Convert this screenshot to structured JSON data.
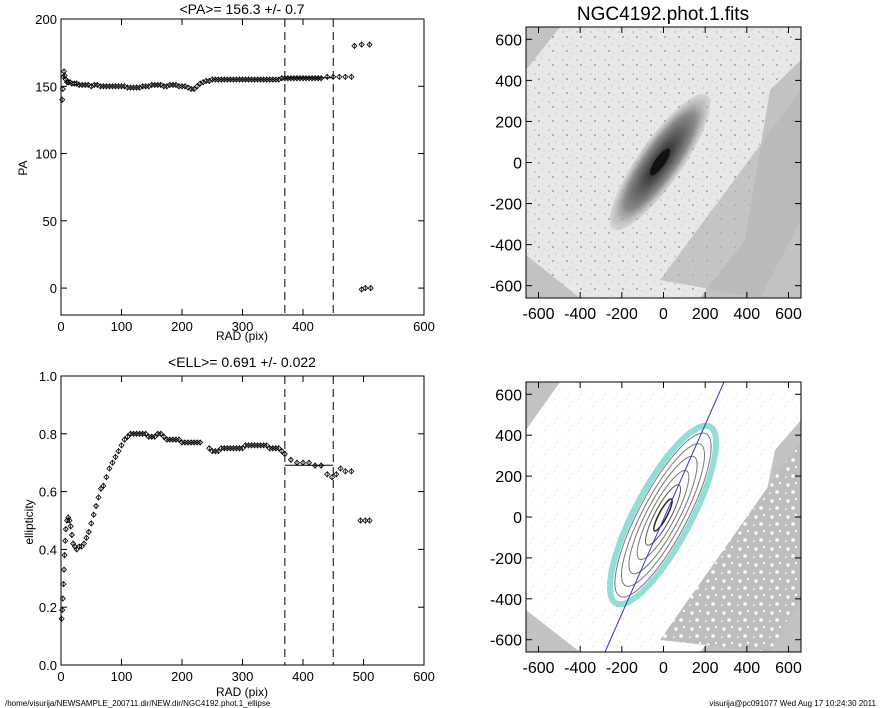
{
  "chart_data": [
    {
      "type": "scatter",
      "title": "<PA>= 156.3 +/-   0.7",
      "xlabel": "RAD (pix)",
      "ylabel": "PA",
      "xlim": [
        0,
        600
      ],
      "ylim": [
        -20,
        200
      ],
      "xticks": [
        "0",
        "100",
        "200",
        "300",
        "400",
        "600"
      ],
      "yticks": [
        "0",
        "50",
        "100",
        "150",
        "200"
      ],
      "vlines_x": [
        370,
        450
      ],
      "mean_line": {
        "x_range": [
          370,
          450
        ],
        "y": 156.3
      },
      "points": [
        [
          2,
          140
        ],
        [
          3,
          148
        ],
        [
          4,
          157
        ],
        [
          5,
          161
        ],
        [
          6,
          158
        ],
        [
          8,
          155
        ],
        [
          10,
          153
        ],
        [
          12,
          153
        ],
        [
          15,
          153
        ],
        [
          18,
          152
        ],
        [
          22,
          152
        ],
        [
          26,
          152
        ],
        [
          30,
          151
        ],
        [
          35,
          151
        ],
        [
          40,
          151
        ],
        [
          45,
          151
        ],
        [
          50,
          150
        ],
        [
          55,
          151
        ],
        [
          60,
          151
        ],
        [
          65,
          150
        ],
        [
          70,
          150
        ],
        [
          75,
          150
        ],
        [
          80,
          150
        ],
        [
          85,
          150
        ],
        [
          90,
          150
        ],
        [
          95,
          150
        ],
        [
          100,
          150
        ],
        [
          105,
          150
        ],
        [
          110,
          149
        ],
        [
          115,
          149
        ],
        [
          120,
          149
        ],
        [
          125,
          149
        ],
        [
          130,
          149
        ],
        [
          135,
          150
        ],
        [
          140,
          150
        ],
        [
          145,
          150
        ],
        [
          150,
          151
        ],
        [
          155,
          151
        ],
        [
          160,
          151
        ],
        [
          165,
          151
        ],
        [
          170,
          150
        ],
        [
          175,
          150
        ],
        [
          180,
          151
        ],
        [
          185,
          151
        ],
        [
          190,
          151
        ],
        [
          195,
          150
        ],
        [
          200,
          150
        ],
        [
          205,
          150
        ],
        [
          210,
          149
        ],
        [
          215,
          148
        ],
        [
          220,
          148
        ],
        [
          225,
          150
        ],
        [
          230,
          152
        ],
        [
          235,
          153
        ],
        [
          240,
          154
        ],
        [
          245,
          154
        ],
        [
          250,
          155
        ],
        [
          255,
          155
        ],
        [
          260,
          155
        ],
        [
          265,
          155
        ],
        [
          270,
          155
        ],
        [
          275,
          155
        ],
        [
          280,
          155
        ],
        [
          285,
          155
        ],
        [
          290,
          155
        ],
        [
          295,
          155
        ],
        [
          300,
          155
        ],
        [
          305,
          155
        ],
        [
          310,
          155
        ],
        [
          315,
          155
        ],
        [
          320,
          155
        ],
        [
          325,
          155
        ],
        [
          330,
          155
        ],
        [
          335,
          155
        ],
        [
          340,
          155
        ],
        [
          345,
          155
        ],
        [
          350,
          155
        ],
        [
          355,
          155
        ],
        [
          360,
          155
        ],
        [
          365,
          156
        ],
        [
          370,
          156
        ],
        [
          375,
          156
        ],
        [
          380,
          156
        ],
        [
          385,
          156
        ],
        [
          390,
          156
        ],
        [
          395,
          156
        ],
        [
          400,
          156
        ],
        [
          405,
          156
        ],
        [
          410,
          156
        ],
        [
          415,
          156
        ],
        [
          420,
          156
        ],
        [
          425,
          156
        ],
        [
          430,
          156
        ],
        [
          440,
          157
        ],
        [
          450,
          157
        ],
        [
          460,
          157
        ],
        [
          470,
          157
        ],
        [
          480,
          157
        ],
        [
          485,
          180
        ],
        [
          497,
          181
        ],
        [
          510,
          181
        ],
        [
          497,
          -1
        ],
        [
          503,
          0
        ],
        [
          512,
          0
        ]
      ]
    },
    {
      "type": "scatter",
      "title": "<ELL>= 0.691 +/-  0.022",
      "xlabel": "RAD (pix)",
      "ylabel": "ellipticity",
      "xlim": [
        0,
        600
      ],
      "ylim": [
        0.0,
        1.0
      ],
      "xticks": [
        "0",
        "100",
        "200",
        "300",
        "400",
        "500",
        "600"
      ],
      "yticks": [
        "0.0",
        "0.2",
        "0.4",
        "0.6",
        "0.8",
        "1.0"
      ],
      "vlines_x": [
        370,
        450
      ],
      "mean_line": {
        "x_range": [
          370,
          450
        ],
        "y": 0.691
      },
      "points": [
        [
          1,
          0.16
        ],
        [
          2,
          0.19
        ],
        [
          3,
          0.23
        ],
        [
          4,
          0.28
        ],
        [
          5,
          0.33
        ],
        [
          6,
          0.38
        ],
        [
          7,
          0.43
        ],
        [
          8,
          0.47
        ],
        [
          10,
          0.5
        ],
        [
          12,
          0.51
        ],
        [
          14,
          0.5
        ],
        [
          16,
          0.48
        ],
        [
          18,
          0.45
        ],
        [
          20,
          0.42
        ],
        [
          23,
          0.41
        ],
        [
          26,
          0.4
        ],
        [
          30,
          0.41
        ],
        [
          34,
          0.41
        ],
        [
          38,
          0.42
        ],
        [
          42,
          0.44
        ],
        [
          46,
          0.46
        ],
        [
          50,
          0.49
        ],
        [
          54,
          0.52
        ],
        [
          58,
          0.55
        ],
        [
          62,
          0.58
        ],
        [
          66,
          0.61
        ],
        [
          70,
          0.62
        ],
        [
          75,
          0.65
        ],
        [
          80,
          0.68
        ],
        [
          85,
          0.7
        ],
        [
          90,
          0.72
        ],
        [
          95,
          0.74
        ],
        [
          100,
          0.76
        ],
        [
          105,
          0.78
        ],
        [
          110,
          0.79
        ],
        [
          115,
          0.8
        ],
        [
          120,
          0.8
        ],
        [
          125,
          0.8
        ],
        [
          130,
          0.8
        ],
        [
          135,
          0.8
        ],
        [
          140,
          0.8
        ],
        [
          145,
          0.79
        ],
        [
          150,
          0.79
        ],
        [
          155,
          0.79
        ],
        [
          160,
          0.8
        ],
        [
          165,
          0.8
        ],
        [
          170,
          0.79
        ],
        [
          175,
          0.78
        ],
        [
          180,
          0.78
        ],
        [
          185,
          0.78
        ],
        [
          190,
          0.78
        ],
        [
          195,
          0.78
        ],
        [
          200,
          0.77
        ],
        [
          205,
          0.77
        ],
        [
          210,
          0.77
        ],
        [
          215,
          0.77
        ],
        [
          220,
          0.77
        ],
        [
          225,
          0.77
        ],
        [
          230,
          0.77
        ],
        [
          245,
          0.75
        ],
        [
          250,
          0.74
        ],
        [
          255,
          0.74
        ],
        [
          260,
          0.74
        ],
        [
          265,
          0.75
        ],
        [
          270,
          0.75
        ],
        [
          275,
          0.75
        ],
        [
          280,
          0.75
        ],
        [
          285,
          0.75
        ],
        [
          290,
          0.75
        ],
        [
          295,
          0.75
        ],
        [
          300,
          0.75
        ],
        [
          305,
          0.76
        ],
        [
          310,
          0.76
        ],
        [
          315,
          0.76
        ],
        [
          320,
          0.76
        ],
        [
          325,
          0.76
        ],
        [
          330,
          0.76
        ],
        [
          335,
          0.76
        ],
        [
          340,
          0.76
        ],
        [
          345,
          0.75
        ],
        [
          350,
          0.75
        ],
        [
          355,
          0.75
        ],
        [
          360,
          0.75
        ],
        [
          365,
          0.74
        ],
        [
          370,
          0.73
        ],
        [
          380,
          0.71
        ],
        [
          390,
          0.7
        ],
        [
          400,
          0.7
        ],
        [
          410,
          0.7
        ],
        [
          420,
          0.69
        ],
        [
          430,
          0.69
        ],
        [
          440,
          0.66
        ],
        [
          448,
          0.65
        ],
        [
          455,
          0.66
        ],
        [
          462,
          0.68
        ],
        [
          470,
          0.67
        ],
        [
          480,
          0.67
        ],
        [
          495,
          0.5
        ],
        [
          503,
          0.5
        ],
        [
          510,
          0.5
        ]
      ]
    }
  ],
  "images": [
    {
      "title": "NGC4192.phot.1.fits",
      "xticks": [
        "-600",
        "-400",
        "-200",
        "0",
        "200",
        "400",
        "600"
      ],
      "yticks": [
        "600",
        "400",
        "200",
        "0",
        "-200",
        "-400",
        "-600"
      ]
    },
    {
      "title": "",
      "xticks": [
        "-600",
        "-400",
        "-200",
        "0",
        "200",
        "400",
        "600"
      ],
      "yticks": [
        "600",
        "400",
        "200",
        "0",
        "-200",
        "-400",
        "-600"
      ]
    }
  ],
  "footer": {
    "path": "/home/visurija/NEWSAMPLE_200711.dir/NEW.dir/NGC4192.phot.1_ellipse",
    "user_date": "visurija@pc091077  Wed Aug 17 10:24:30 2011"
  }
}
